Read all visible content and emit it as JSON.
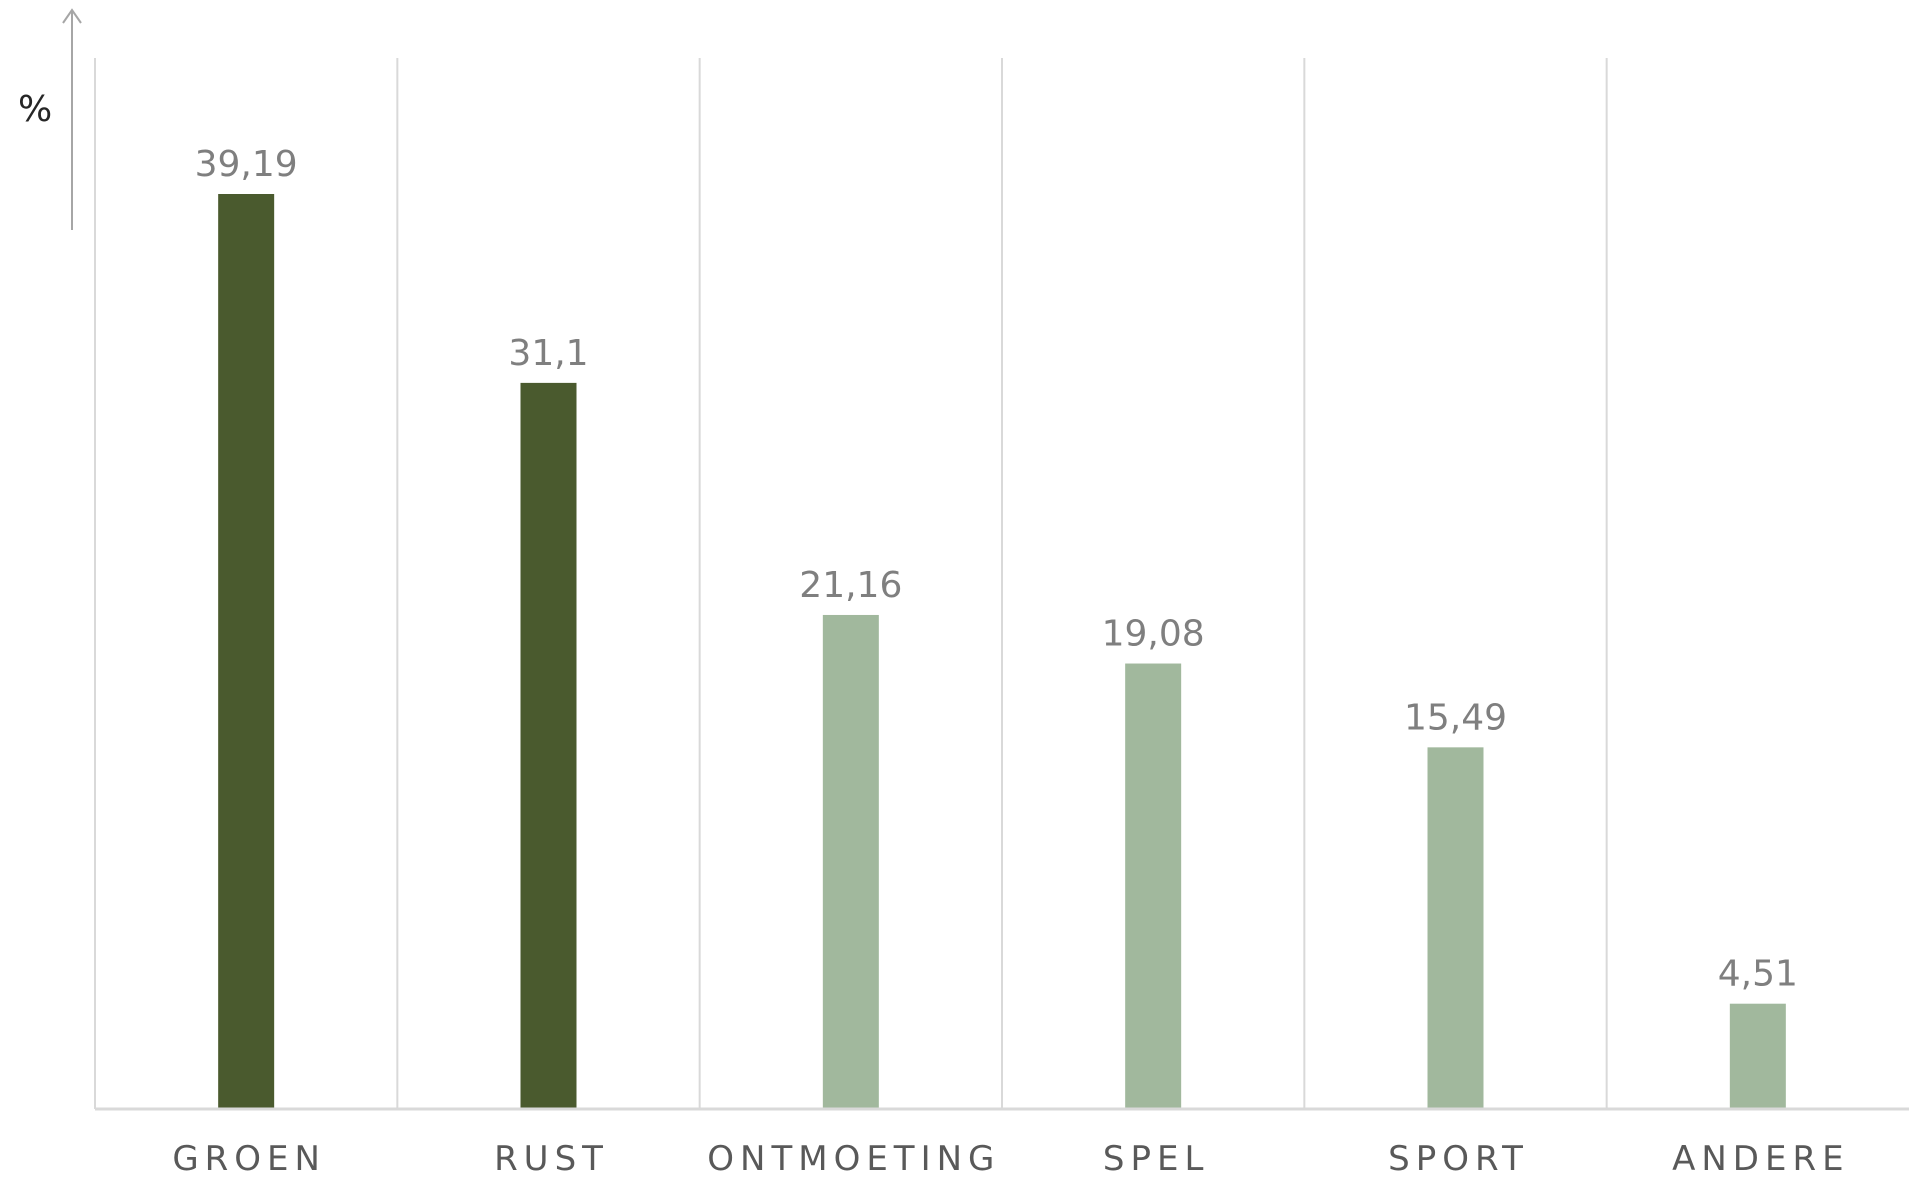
{
  "chart_data": {
    "type": "bar",
    "categories": [
      "GROEN",
      "RUST",
      "ONTMOETING",
      "SPEL",
      "SPORT",
      "ANDERE"
    ],
    "values": [
      39.19,
      31.1,
      21.16,
      19.08,
      15.49,
      4.51
    ],
    "value_labels": [
      "39,19",
      "31,1",
      "21,16",
      "19,08",
      "15,49",
      "4,51"
    ],
    "ylabel": "%",
    "ylim": [
      0,
      45
    ],
    "grid": true,
    "legend": "none",
    "colors": {
      "highlight": "#4a5a2e",
      "default": "#a1b89d"
    },
    "highlighted_categories": [
      "GROEN",
      "RUST"
    ]
  }
}
